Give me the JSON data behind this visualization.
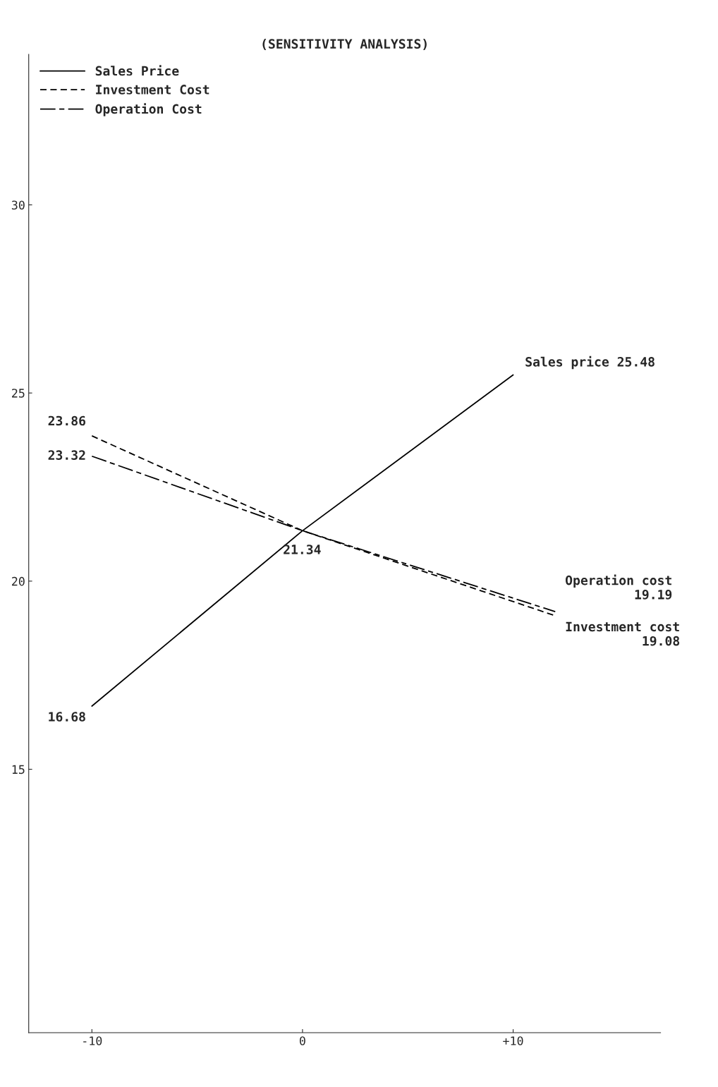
{
  "chart_data": {
    "type": "line",
    "title": "(SENSITIVITY ANALYSIS)",
    "x": [
      -10,
      0,
      10
    ],
    "series": [
      {
        "name": "Sales Price",
        "color": "#000000",
        "line_style": "solid",
        "values": [
          16.68,
          21.34,
          25.48
        ]
      },
      {
        "name": "Investment Cost",
        "color": "#000000",
        "line_style": "dashed",
        "x": [
          -10,
          0,
          12
        ],
        "values": [
          23.86,
          21.34,
          19.08
        ]
      },
      {
        "name": "Operation Cost",
        "color": "#000000",
        "line_style": "dashdot",
        "x": [
          -10,
          0,
          12
        ],
        "values": [
          23.32,
          21.34,
          19.19
        ]
      }
    ],
    "xlim": [
      -13,
      17
    ],
    "xticks": [
      {
        "value": -10,
        "label": "-10"
      },
      0,
      {
        "value": 10,
        "label": "+10"
      }
    ],
    "ylim": [
      8,
      34
    ],
    "yticks": [
      15,
      20,
      25,
      30
    ],
    "annotations": [
      {
        "text": "Sales price 25.48",
        "x": 10,
        "y": 25.48
      },
      {
        "text": "23.86",
        "x": -10,
        "y": 23.86
      },
      {
        "text": "23.32",
        "x": -10,
        "y": 23.32
      },
      {
        "text": "16.68",
        "x": -10,
        "y": 16.68
      },
      {
        "text": "21.34",
        "x": 0,
        "y": 21.34
      },
      {
        "text": "Operation cost\n19.19",
        "x": 12,
        "y": 19.19
      },
      {
        "text": "Investment cost\n19.08",
        "x": 12,
        "y": 19.08
      }
    ],
    "legend": "top left",
    "grid": false,
    "marker": "none"
  }
}
